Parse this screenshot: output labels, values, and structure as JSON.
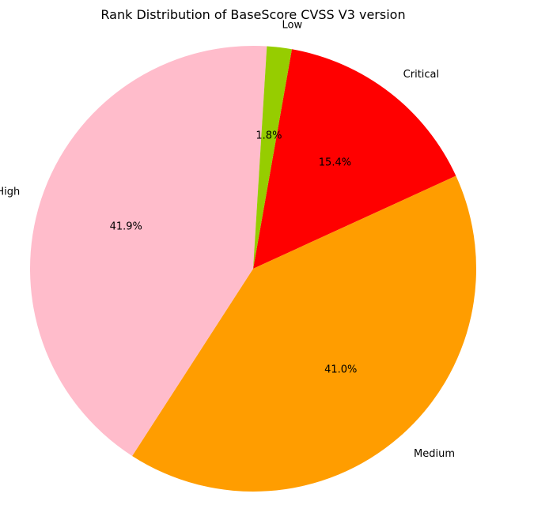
{
  "chart_data": {
    "type": "pie",
    "title": "Rank Distribution of BaseScore CVSS V3 version",
    "slices": [
      {
        "label": "Critical",
        "value": 15.4,
        "pct_label": "15.4%",
        "color": "#ff0000"
      },
      {
        "label": "Medium",
        "value": 41.0,
        "pct_label": "41.0%",
        "color": "#ff9d00"
      },
      {
        "label": "High",
        "value": 41.9,
        "pct_label": "41.9%",
        "color": "#ffbccb"
      },
      {
        "label": "Low",
        "value": 1.8,
        "pct_label": "1.8%",
        "color": "#96cd00"
      }
    ],
    "start_angle_deg": 80,
    "direction": "clockwise",
    "legend": "none"
  }
}
